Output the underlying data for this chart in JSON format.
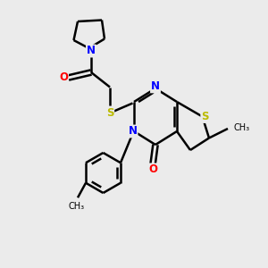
{
  "background_color": "#ebebeb",
  "bond_color": "#000000",
  "atom_colors": {
    "N": "#0000ff",
    "O": "#ff0000",
    "S": "#bbbb00",
    "C": "#000000"
  },
  "figsize": [
    3.0,
    3.0
  ],
  "dpi": 100
}
